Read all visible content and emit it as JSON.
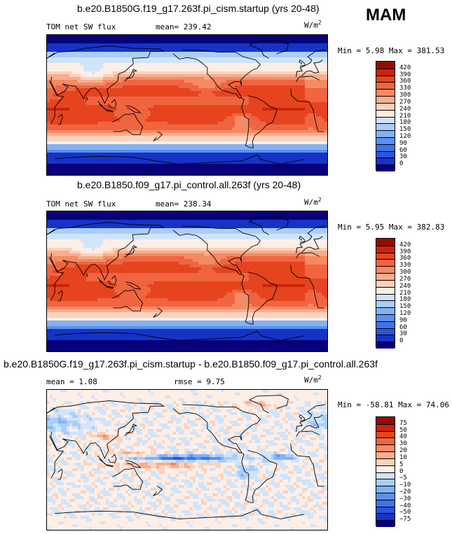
{
  "season": "MAM",
  "colors": {
    "cbar_sw": [
      "#08007a",
      "#1633c8",
      "#2a55de",
      "#3d73ec",
      "#5b91f2",
      "#82b2f6",
      "#aacef8",
      "#d0e4fa",
      "#fdeee6",
      "#fcd2bc",
      "#f9ad8c",
      "#f58a63",
      "#f06540",
      "#e5441f",
      "#cb2308",
      "#920d00"
    ]
  },
  "chart_data": [
    {
      "type": "heatmap",
      "title": "b.e20.B1850G.f19_g17.263f.pi_cism.startup (yrs 20-48)",
      "variable": "TOM net SW flux",
      "stat_text": "mean= 239.42",
      "mean": 239.42,
      "units_base": "W/m",
      "units_exp": "2",
      "minmax_text": "Min =   5.98 Max = 381.53",
      "min": 5.98,
      "max": 381.53,
      "colorbar_levels": [
        "420",
        "390",
        "360",
        "330",
        "300",
        "270",
        "240",
        "210",
        "180",
        "150",
        "120",
        "90",
        "60",
        "30",
        "0"
      ],
      "value_range": [
        0,
        420
      ],
      "pattern": "full"
    },
    {
      "type": "heatmap",
      "title": "b.e20.B1850.f09_g17.pi_control.all.263f (yrs 20-48)",
      "variable": "TOM net SW flux",
      "stat_text": "mean= 238.34",
      "mean": 238.34,
      "units_base": "W/m",
      "units_exp": "2",
      "minmax_text": "Min =   5.95 Max = 382.83",
      "min": 5.95,
      "max": 382.83,
      "colorbar_levels": [
        "420",
        "390",
        "360",
        "330",
        "300",
        "270",
        "240",
        "210",
        "180",
        "150",
        "120",
        "90",
        "60",
        "30",
        "0"
      ],
      "value_range": [
        0,
        420
      ],
      "pattern": "full"
    },
    {
      "type": "heatmap",
      "title": "b.e20.B1850G.f19_g17.263f.pi_cism.startup - b.e20.B1850.f09_g17.pi_control.all.263f",
      "stat_text": "mean =   1.08",
      "stat2_text": "rmse =   9.75",
      "mean": 1.08,
      "rmse": 9.75,
      "units_base": "W/m",
      "units_exp": "2",
      "minmax_text": "Min = -58.81 Max =  74.06",
      "min": -58.81,
      "max": 74.06,
      "colorbar_levels": [
        "75",
        "50",
        "40",
        "30",
        "20",
        "10",
        "5",
        "0",
        "−5",
        "−10",
        "−20",
        "−30",
        "−40",
        "−50",
        "−75"
      ],
      "value_range": [
        -75,
        75
      ],
      "pattern": "diff"
    }
  ]
}
